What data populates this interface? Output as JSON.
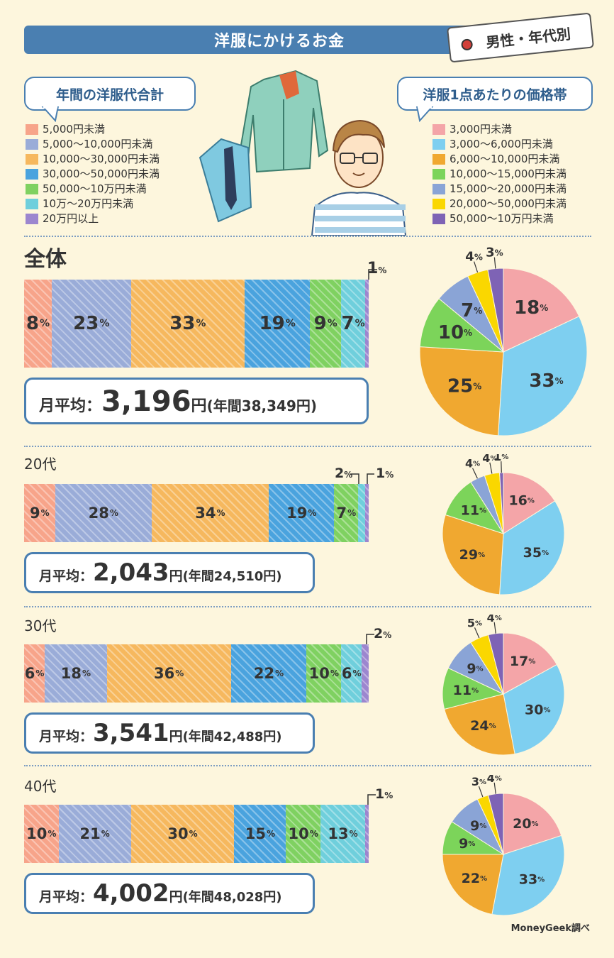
{
  "title": "洋服にかけるお金",
  "tag": "男性・年代別",
  "left_header": "年間の洋服代合計",
  "right_header": "洋服1点あたりの価格帯",
  "annual_legend": [
    {
      "label": "5,000円未満",
      "color": "#f7a48a"
    },
    {
      "label": "5,000〜10,000円未満",
      "color": "#9aacd8"
    },
    {
      "label": "10,000〜30,000円未満",
      "color": "#f6b85e"
    },
    {
      "label": "30,000〜50,000円未満",
      "color": "#4aa3de"
    },
    {
      "label": "50,000〜10万円未満",
      "color": "#7fd161"
    },
    {
      "label": "10万〜20万円未満",
      "color": "#6fcfdc"
    },
    {
      "label": "20万円以上",
      "color": "#9c86cf"
    }
  ],
  "price_legend": [
    {
      "label": "3,000円未満",
      "color": "#f4a5a8"
    },
    {
      "label": "3,000〜6,000円未満",
      "color": "#7ecff0"
    },
    {
      "label": "6,000〜10,000円未満",
      "color": "#f0a830"
    },
    {
      "label": "10,000〜15,000円未満",
      "color": "#7cd45a"
    },
    {
      "label": "15,000〜20,000円未満",
      "color": "#8aa4d6"
    },
    {
      "label": "20,000〜50,000円未満",
      "color": "#fad700"
    },
    {
      "label": "50,000〜10万円未満",
      "color": "#7e63b5"
    }
  ],
  "avg_label": "月平均：",
  "yen": "円",
  "pct": "%",
  "sections": [
    {
      "title": "全体",
      "monthly": "3,196",
      "annual": "(年間38,349円)"
    },
    {
      "title": "20代",
      "monthly": "2,043",
      "annual": "(年間24,510円)"
    },
    {
      "title": "30代",
      "monthly": "3,541",
      "annual": "(年間42,488円)"
    },
    {
      "title": "40代",
      "monthly": "4,002",
      "annual": "(年間48,028円)"
    }
  ],
  "chart_data": [
    {
      "type": "bar",
      "title": "全体 年間の洋服代合計",
      "categories": [
        "5,000円未満",
        "5,000〜10,000円未満",
        "10,000〜30,000円未満",
        "30,000〜50,000円未満",
        "50,000〜10万円未満",
        "10万〜20万円未満",
        "20万円以上"
      ],
      "values": [
        8,
        23,
        33,
        19,
        9,
        7,
        1
      ]
    },
    {
      "type": "pie",
      "title": "全体 洋服1点あたりの価格帯",
      "categories": [
        "3,000円未満",
        "3,000〜6,000円未満",
        "6,000〜10,000円未満",
        "10,000〜15,000円未満",
        "15,000〜20,000円未満",
        "20,000〜50,000円未満",
        "50,000〜10万円未満"
      ],
      "values": [
        18,
        33,
        25,
        10,
        7,
        4,
        3
      ]
    },
    {
      "type": "bar",
      "title": "20代 年間の洋服代合計",
      "categories": [
        "5,000円未満",
        "5,000〜10,000円未満",
        "10,000〜30,000円未満",
        "30,000〜50,000円未満",
        "50,000〜10万円未満",
        "10万〜20万円未満",
        "20万円以上"
      ],
      "values": [
        9,
        28,
        34,
        19,
        7,
        2,
        1
      ]
    },
    {
      "type": "pie",
      "title": "20代 洋服1点あたりの価格帯",
      "categories": [
        "3,000円未満",
        "3,000〜6,000円未満",
        "6,000〜10,000円未満",
        "10,000〜15,000円未満",
        "15,000〜20,000円未満",
        "20,000〜50,000円未満",
        "50,000〜10万円未満"
      ],
      "values": [
        16,
        35,
        29,
        11,
        4,
        4,
        1
      ]
    },
    {
      "type": "bar",
      "title": "30代 年間の洋服代合計",
      "categories": [
        "5,000円未満",
        "5,000〜10,000円未満",
        "10,000〜30,000円未満",
        "30,000〜50,000円未満",
        "50,000〜10万円未満",
        "10万〜20万円未満",
        "20万円以上"
      ],
      "values": [
        6,
        18,
        36,
        22,
        10,
        6,
        2
      ]
    },
    {
      "type": "pie",
      "title": "30代 洋服1点あたりの価格帯",
      "categories": [
        "3,000円未満",
        "3,000〜6,000円未満",
        "6,000〜10,000円未満",
        "10,000〜15,000円未満",
        "15,000〜20,000円未満",
        "20,000〜50,000円未満",
        "50,000〜10万円未満"
      ],
      "values": [
        17,
        30,
        24,
        11,
        9,
        5,
        4
      ]
    },
    {
      "type": "bar",
      "title": "40代 年間の洋服代合計",
      "categories": [
        "5,000円未満",
        "5,000〜10,000円未満",
        "10,000〜30,000円未満",
        "30,000〜50,000円未満",
        "50,000〜10万円未満",
        "10万〜20万円未満",
        "20万円以上"
      ],
      "values": [
        10,
        21,
        30,
        15,
        10,
        13,
        1
      ]
    },
    {
      "type": "pie",
      "title": "40代 洋服1点あたりの価格帯",
      "categories": [
        "3,000円未満",
        "3,000〜6,000円未満",
        "6,000〜10,000円未満",
        "10,000〜15,000円未満",
        "15,000〜20,000円未満",
        "20,000〜50,000円未満",
        "50,000〜10万円未満"
      ],
      "values": [
        20,
        33,
        22,
        9,
        9,
        3,
        4
      ]
    }
  ],
  "source": "MoneyGeek調べ"
}
